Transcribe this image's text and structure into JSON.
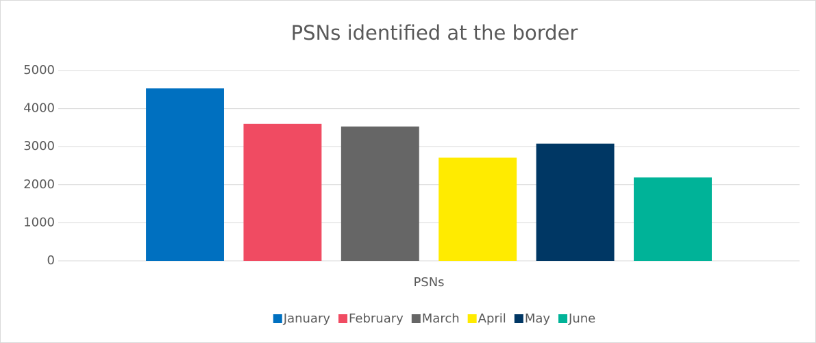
{
  "chart_data": {
    "type": "bar",
    "title": "PSNs identified at the border",
    "categories": [
      "PSNs"
    ],
    "series": [
      {
        "name": "January",
        "color": "#0070c0",
        "values": [
          4530
        ]
      },
      {
        "name": "February",
        "color": "#f04b62",
        "values": [
          3600
        ]
      },
      {
        "name": "March",
        "color": "#666666",
        "values": [
          3530
        ]
      },
      {
        "name": "April",
        "color": "#ffeb00",
        "values": [
          2710
        ]
      },
      {
        "name": "May",
        "color": "#003764",
        "values": [
          3080
        ]
      },
      {
        "name": "June",
        "color": "#00b398",
        "values": [
          2190
        ]
      }
    ],
    "ylim": [
      0,
      5000
    ],
    "yticks": [
      0,
      1000,
      2000,
      3000,
      4000,
      5000
    ],
    "grid": true,
    "legend": "bottom"
  }
}
